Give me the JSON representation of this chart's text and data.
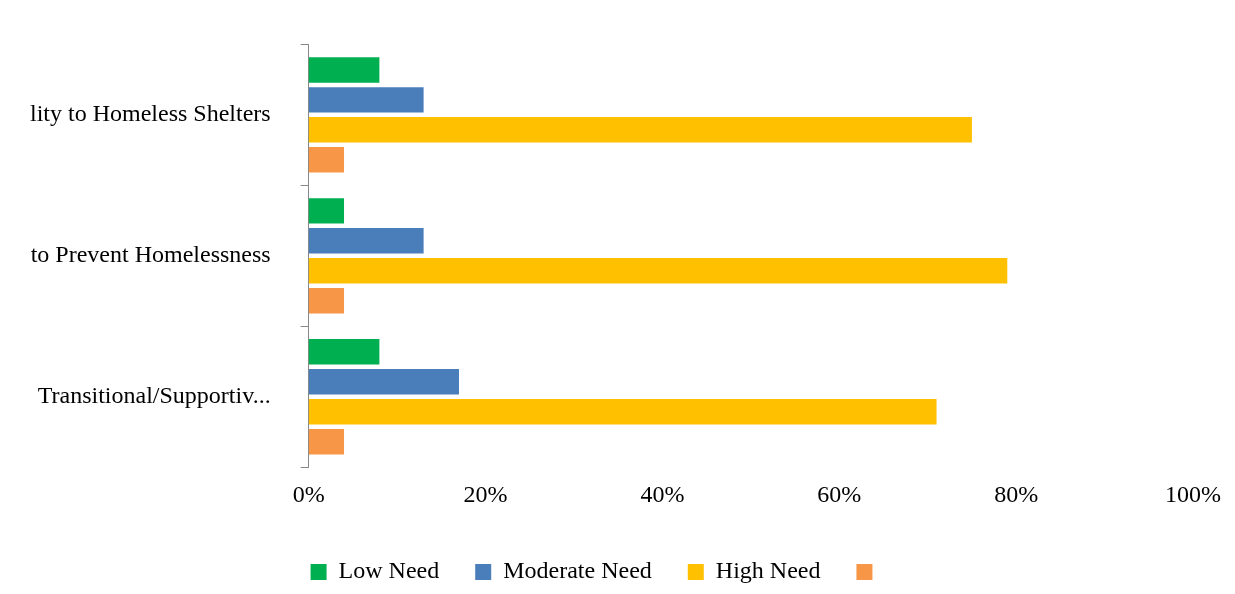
{
  "chart_data": {
    "type": "bar",
    "orientation": "horizontal",
    "categories": [
      "lity to Homeless Shelters",
      "to Prevent Homelessness",
      "Transitional/Supportiv..."
    ],
    "series": [
      {
        "name": "Low Need",
        "color": "#00b050",
        "values": [
          8,
          4,
          8
        ]
      },
      {
        "name": "Moderate Need",
        "color": "#4a7ebb",
        "values": [
          13,
          13,
          17
        ]
      },
      {
        "name": "High Need",
        "color": "#ffc000",
        "values": [
          75,
          79,
          71
        ]
      },
      {
        "color": "#f79646",
        "values": [
          4,
          4,
          4
        ]
      }
    ],
    "xlim": [
      0,
      100
    ],
    "xticks": [
      {
        "value": 0,
        "label": "0%"
      },
      {
        "value": 20,
        "label": "20%"
      },
      {
        "value": 40,
        "label": "40%"
      },
      {
        "value": 60,
        "label": "60%"
      },
      {
        "value": 80,
        "label": "80%"
      },
      {
        "value": 100,
        "label": "100%"
      }
    ],
    "grid": false,
    "legend": "bottom"
  }
}
